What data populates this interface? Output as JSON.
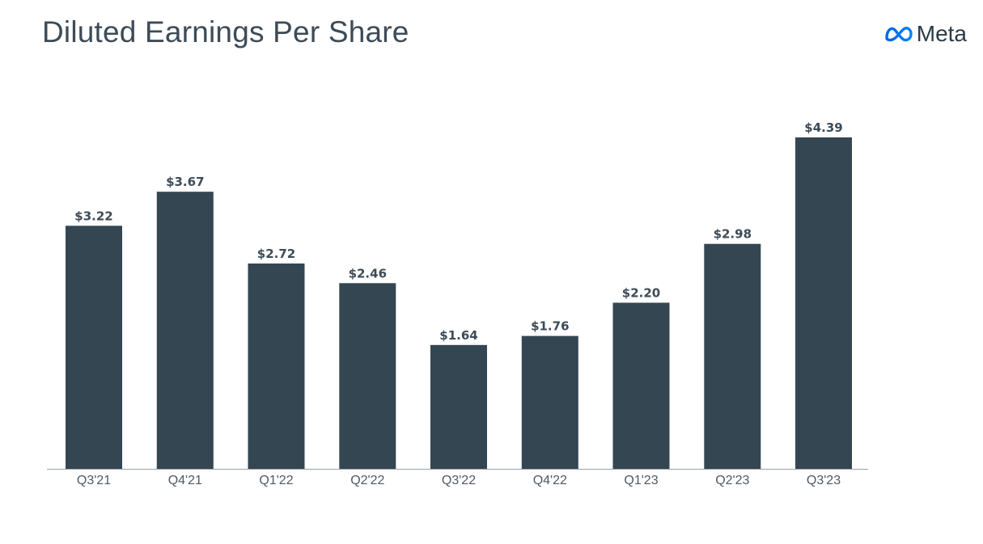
{
  "header": {
    "title": "Diluted Earnings Per Share",
    "brand_name": "Meta"
  },
  "colors": {
    "bar": "#344651",
    "axis": "#9aa1a7",
    "text": "#3d4b57",
    "logo_left": "#0668E1",
    "logo_right": "#0082FB"
  },
  "chart_data": {
    "type": "bar",
    "title": "Diluted Earnings Per Share",
    "xlabel": "",
    "ylabel": "",
    "categories": [
      "Q3'21",
      "Q4'21",
      "Q1'22",
      "Q2'22",
      "Q3'22",
      "Q4'22",
      "Q1'23",
      "Q2'23",
      "Q3'23"
    ],
    "values": [
      3.22,
      3.67,
      2.72,
      2.46,
      1.64,
      1.76,
      2.2,
      2.98,
      4.39
    ],
    "data_labels": [
      "$3.22",
      "$3.67",
      "$2.72",
      "$2.46",
      "$1.64",
      "$1.76",
      "$2.20",
      "$2.98",
      "$4.39"
    ],
    "ylim": [
      0,
      4.39
    ],
    "grid": false,
    "legend": "none"
  }
}
